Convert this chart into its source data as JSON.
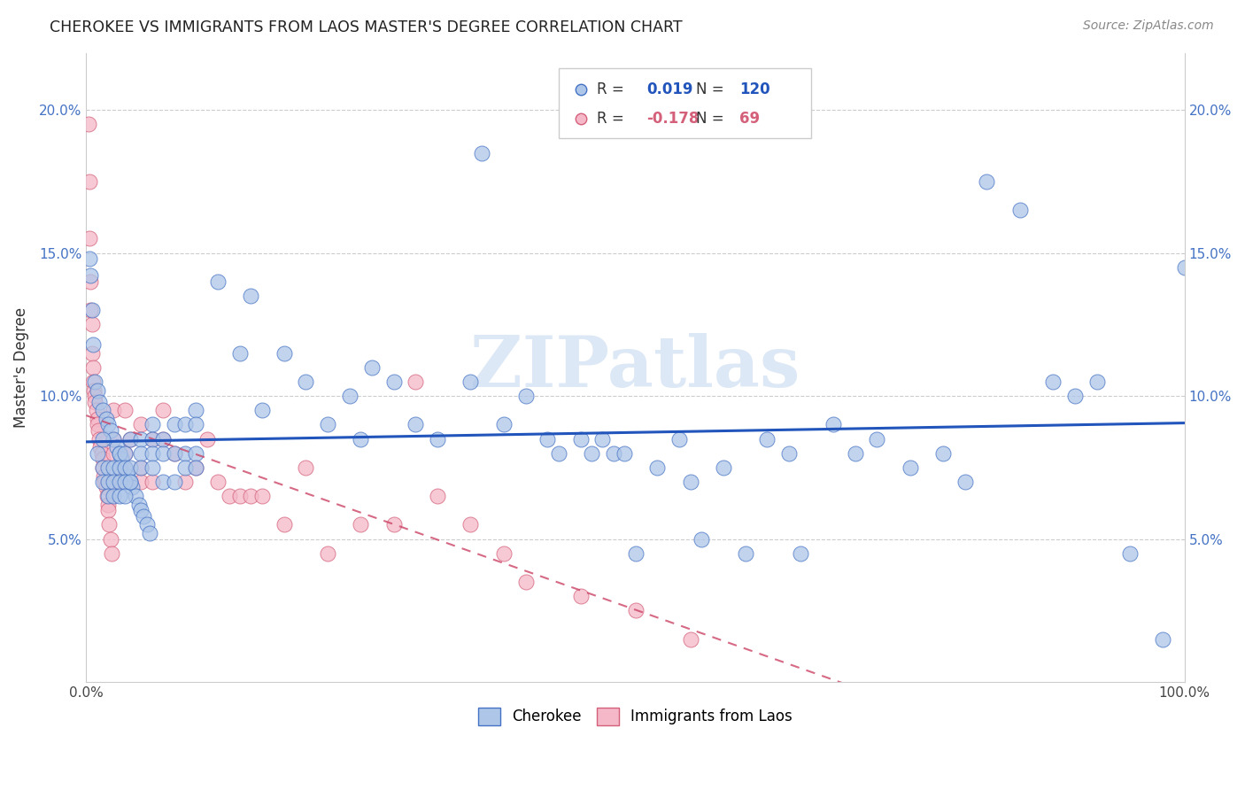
{
  "title": "CHEROKEE VS IMMIGRANTS FROM LAOS MASTER'S DEGREE CORRELATION CHART",
  "source": "Source: ZipAtlas.com",
  "ylabel": "Master's Degree",
  "xlim": [
    0,
    100
  ],
  "ylim": [
    0,
    22
  ],
  "yticks": [
    0,
    5,
    10,
    15,
    20
  ],
  "yticklabels_left": [
    "",
    "5.0%",
    "10.0%",
    "15.0%",
    "20.0%"
  ],
  "yticklabels_right": [
    "",
    "5.0%",
    "10.0%",
    "15.0%",
    "20.0%"
  ],
  "cherokee_color": "#aec6e8",
  "cherokee_edge_color": "#4472c4",
  "laos_color": "#f4b8c8",
  "laos_edge_color": "#d4607a",
  "cherokee_line_color": "#2255bb",
  "laos_line_color": "#cc4466",
  "watermark": "ZIPatlas",
  "cherokee_points": [
    [
      0.3,
      14.8
    ],
    [
      0.4,
      14.2
    ],
    [
      0.5,
      13.0
    ],
    [
      0.6,
      11.8
    ],
    [
      0.8,
      10.5
    ],
    [
      1.0,
      10.2
    ],
    [
      1.2,
      9.8
    ],
    [
      1.5,
      9.5
    ],
    [
      1.8,
      9.2
    ],
    [
      2.0,
      9.0
    ],
    [
      2.2,
      8.8
    ],
    [
      2.5,
      8.5
    ],
    [
      2.8,
      8.2
    ],
    [
      3.0,
      8.0
    ],
    [
      3.2,
      7.8
    ],
    [
      3.5,
      7.5
    ],
    [
      3.8,
      7.2
    ],
    [
      4.0,
      7.0
    ],
    [
      4.2,
      6.8
    ],
    [
      4.5,
      6.5
    ],
    [
      4.8,
      6.2
    ],
    [
      5.0,
      6.0
    ],
    [
      5.2,
      5.8
    ],
    [
      5.5,
      5.5
    ],
    [
      5.8,
      5.2
    ],
    [
      1.0,
      8.0
    ],
    [
      1.5,
      8.5
    ],
    [
      1.5,
      7.5
    ],
    [
      1.5,
      7.0
    ],
    [
      2.0,
      7.5
    ],
    [
      2.0,
      7.0
    ],
    [
      2.0,
      6.5
    ],
    [
      2.5,
      7.5
    ],
    [
      2.5,
      7.0
    ],
    [
      2.5,
      6.5
    ],
    [
      3.0,
      8.0
    ],
    [
      3.0,
      7.5
    ],
    [
      3.0,
      7.0
    ],
    [
      3.0,
      6.5
    ],
    [
      3.5,
      8.0
    ],
    [
      3.5,
      7.5
    ],
    [
      3.5,
      7.0
    ],
    [
      3.5,
      6.5
    ],
    [
      4.0,
      8.5
    ],
    [
      4.0,
      7.5
    ],
    [
      4.0,
      7.0
    ],
    [
      5.0,
      8.5
    ],
    [
      5.0,
      8.0
    ],
    [
      5.0,
      7.5
    ],
    [
      6.0,
      9.0
    ],
    [
      6.0,
      8.5
    ],
    [
      6.0,
      8.0
    ],
    [
      6.0,
      7.5
    ],
    [
      7.0,
      8.5
    ],
    [
      7.0,
      8.0
    ],
    [
      7.0,
      7.0
    ],
    [
      8.0,
      9.0
    ],
    [
      8.0,
      8.0
    ],
    [
      8.0,
      7.0
    ],
    [
      9.0,
      9.0
    ],
    [
      9.0,
      8.0
    ],
    [
      9.0,
      7.5
    ],
    [
      10.0,
      9.5
    ],
    [
      10.0,
      9.0
    ],
    [
      10.0,
      8.0
    ],
    [
      10.0,
      7.5
    ],
    [
      12.0,
      14.0
    ],
    [
      14.0,
      11.5
    ],
    [
      15.0,
      13.5
    ],
    [
      16.0,
      9.5
    ],
    [
      18.0,
      11.5
    ],
    [
      20.0,
      10.5
    ],
    [
      22.0,
      9.0
    ],
    [
      24.0,
      10.0
    ],
    [
      25.0,
      8.5
    ],
    [
      26.0,
      11.0
    ],
    [
      28.0,
      10.5
    ],
    [
      30.0,
      9.0
    ],
    [
      32.0,
      8.5
    ],
    [
      35.0,
      10.5
    ],
    [
      36.0,
      18.5
    ],
    [
      38.0,
      9.0
    ],
    [
      40.0,
      10.0
    ],
    [
      42.0,
      8.5
    ],
    [
      43.0,
      8.0
    ],
    [
      45.0,
      8.5
    ],
    [
      46.0,
      8.0
    ],
    [
      47.0,
      8.5
    ],
    [
      48.0,
      8.0
    ],
    [
      49.0,
      8.0
    ],
    [
      50.0,
      4.5
    ],
    [
      52.0,
      7.5
    ],
    [
      54.0,
      8.5
    ],
    [
      55.0,
      7.0
    ],
    [
      56.0,
      5.0
    ],
    [
      58.0,
      7.5
    ],
    [
      60.0,
      4.5
    ],
    [
      62.0,
      8.5
    ],
    [
      64.0,
      8.0
    ],
    [
      65.0,
      4.5
    ],
    [
      68.0,
      9.0
    ],
    [
      70.0,
      8.0
    ],
    [
      72.0,
      8.5
    ],
    [
      75.0,
      7.5
    ],
    [
      78.0,
      8.0
    ],
    [
      80.0,
      7.0
    ],
    [
      82.0,
      17.5
    ],
    [
      85.0,
      16.5
    ],
    [
      88.0,
      10.5
    ],
    [
      90.0,
      10.0
    ],
    [
      92.0,
      10.5
    ],
    [
      95.0,
      4.5
    ],
    [
      98.0,
      1.5
    ],
    [
      100.0,
      14.5
    ]
  ],
  "laos_points": [
    [
      0.2,
      19.5
    ],
    [
      0.3,
      17.5
    ],
    [
      0.3,
      15.5
    ],
    [
      0.4,
      14.0
    ],
    [
      0.4,
      13.0
    ],
    [
      0.5,
      12.5
    ],
    [
      0.5,
      11.5
    ],
    [
      0.6,
      11.0
    ],
    [
      0.6,
      10.5
    ],
    [
      0.7,
      10.2
    ],
    [
      0.8,
      10.0
    ],
    [
      0.8,
      9.8
    ],
    [
      0.9,
      9.5
    ],
    [
      1.0,
      9.2
    ],
    [
      1.0,
      9.0
    ],
    [
      1.1,
      8.8
    ],
    [
      1.2,
      8.5
    ],
    [
      1.3,
      8.2
    ],
    [
      1.4,
      8.0
    ],
    [
      1.5,
      7.8
    ],
    [
      1.5,
      7.5
    ],
    [
      1.6,
      7.2
    ],
    [
      1.7,
      7.0
    ],
    [
      1.8,
      6.8
    ],
    [
      1.9,
      6.5
    ],
    [
      2.0,
      6.2
    ],
    [
      2.0,
      6.0
    ],
    [
      2.1,
      5.5
    ],
    [
      2.2,
      5.0
    ],
    [
      2.3,
      4.5
    ],
    [
      2.5,
      9.5
    ],
    [
      2.5,
      8.5
    ],
    [
      2.5,
      8.0
    ],
    [
      3.0,
      7.5
    ],
    [
      3.0,
      7.0
    ],
    [
      3.5,
      9.5
    ],
    [
      3.5,
      8.0
    ],
    [
      3.5,
      7.5
    ],
    [
      4.0,
      8.5
    ],
    [
      4.0,
      7.0
    ],
    [
      5.0,
      9.0
    ],
    [
      5.0,
      7.5
    ],
    [
      5.0,
      7.0
    ],
    [
      6.0,
      8.5
    ],
    [
      6.0,
      7.0
    ],
    [
      7.0,
      9.5
    ],
    [
      7.0,
      8.5
    ],
    [
      8.0,
      8.0
    ],
    [
      9.0,
      7.0
    ],
    [
      10.0,
      7.5
    ],
    [
      11.0,
      8.5
    ],
    [
      12.0,
      7.0
    ],
    [
      13.0,
      6.5
    ],
    [
      14.0,
      6.5
    ],
    [
      15.0,
      6.5
    ],
    [
      16.0,
      6.5
    ],
    [
      18.0,
      5.5
    ],
    [
      20.0,
      7.5
    ],
    [
      22.0,
      4.5
    ],
    [
      25.0,
      5.5
    ],
    [
      28.0,
      5.5
    ],
    [
      30.0,
      10.5
    ],
    [
      32.0,
      6.5
    ],
    [
      35.0,
      5.5
    ],
    [
      38.0,
      4.5
    ],
    [
      40.0,
      3.5
    ],
    [
      45.0,
      3.0
    ],
    [
      50.0,
      2.5
    ],
    [
      55.0,
      1.5
    ]
  ]
}
